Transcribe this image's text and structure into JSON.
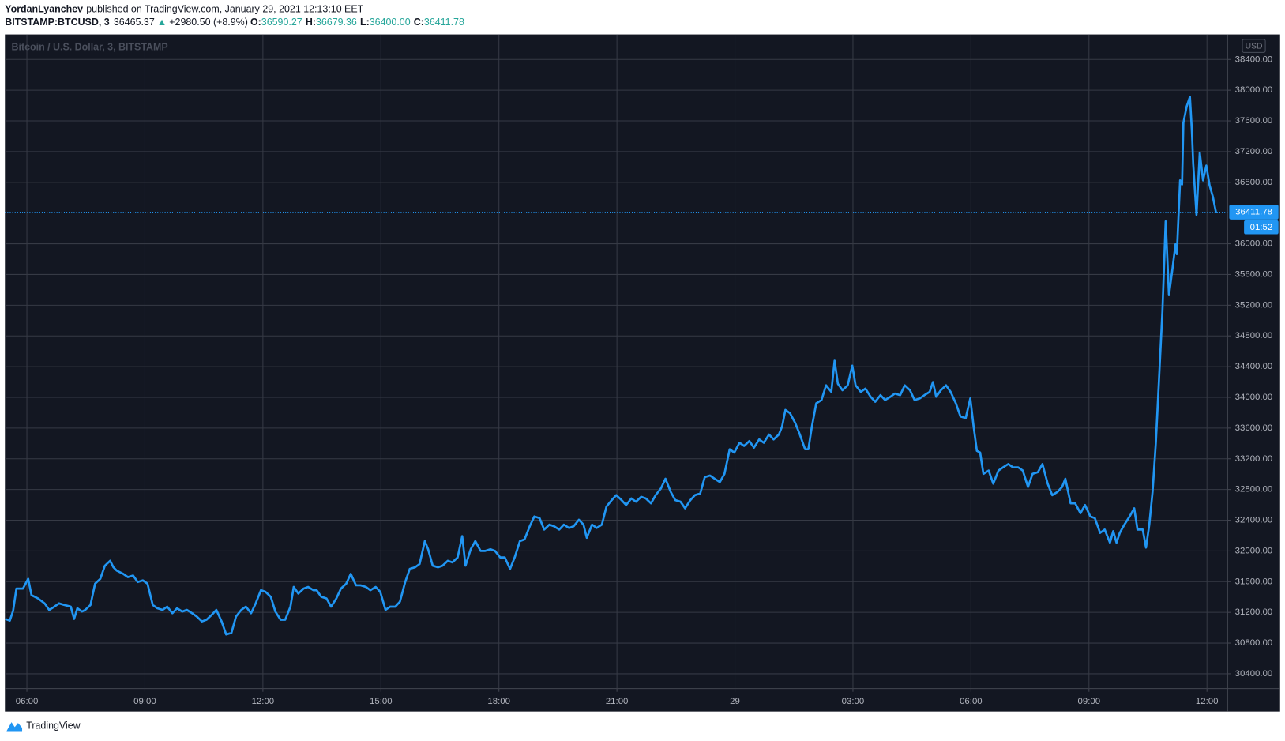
{
  "header": {
    "author": "YordanLyanchev",
    "published": "published on TradingView.com, January 29, 2021 12:13:10 EET",
    "symbol": "BITSTAMP:BTCUSD, 3",
    "price": "36465.37",
    "arrow": "▲",
    "change": "+2980.50 (+8.9%)",
    "open_label": "O:",
    "open": "36590.27",
    "high_label": "H:",
    "high": "36679.36",
    "low_label": "L:",
    "low": "36400.00",
    "close_label": "C:",
    "close": "36411.78"
  },
  "footer": {
    "brand": "TradingView"
  },
  "chart_data": {
    "type": "line",
    "currency": "USD",
    "countdown": "01:52",
    "last_price": 36411.78,
    "grid": true,
    "xlim": [
      326.5,
      2191.5
    ],
    "ylim": [
      30208,
      38726
    ],
    "xticks": [
      {
        "value": 360,
        "label": "06:00"
      },
      {
        "value": 540,
        "label": "09:00"
      },
      {
        "value": 720,
        "label": "12:00"
      },
      {
        "value": 900,
        "label": "15:00"
      },
      {
        "value": 1080,
        "label": "18:00"
      },
      {
        "value": 1260,
        "label": "21:00"
      },
      {
        "value": 1440,
        "label": "29"
      },
      {
        "value": 1620,
        "label": "03:00"
      },
      {
        "value": 1800,
        "label": "06:00"
      },
      {
        "value": 1980,
        "label": "09:00"
      },
      {
        "value": 2160,
        "label": "12:00"
      }
    ],
    "yticks": [
      {
        "value": 30400,
        "label": "30400.00"
      },
      {
        "value": 30800,
        "label": "30800.00"
      },
      {
        "value": 31200,
        "label": "31200.00"
      },
      {
        "value": 31600,
        "label": "31600.00"
      },
      {
        "value": 32000,
        "label": "32000.00"
      },
      {
        "value": 32400,
        "label": "32400.00"
      },
      {
        "value": 32800,
        "label": "32800.00"
      },
      {
        "value": 33200,
        "label": "33200.00"
      },
      {
        "value": 33600,
        "label": "33600.00"
      },
      {
        "value": 34000,
        "label": "34000.00"
      },
      {
        "value": 34400,
        "label": "34400.00"
      },
      {
        "value": 34800,
        "label": "34800.00"
      },
      {
        "value": 35200,
        "label": "35200.00"
      },
      {
        "value": 35600,
        "label": "35600.00"
      },
      {
        "value": 36000,
        "label": "36000.00"
      },
      {
        "value": 36800,
        "label": "36800.00"
      },
      {
        "value": 37200,
        "label": "37200.00"
      },
      {
        "value": 37600,
        "label": "37600.00"
      },
      {
        "value": 38000,
        "label": "38000.00"
      },
      {
        "value": 38400,
        "label": "38400.00"
      }
    ],
    "x": [
      327,
      334,
      339,
      344,
      354,
      362,
      367,
      377,
      387,
      394,
      402,
      409,
      417,
      427,
      432,
      437,
      444,
      449,
      457,
      464,
      472,
      479,
      487,
      492,
      497,
      507,
      514,
      522,
      529,
      537,
      544,
      552,
      559,
      567,
      574,
      582,
      589,
      597,
      604,
      612,
      619,
      627,
      634,
      642,
      649,
      657,
      664,
      672,
      679,
      687,
      694,
      702,
      709,
      717,
      724,
      732,
      739,
      747,
      754,
      762,
      767,
      774,
      782,
      789,
      797,
      802,
      809,
      817,
      824,
      832,
      839,
      847,
      854,
      862,
      869,
      877,
      884,
      892,
      899,
      907,
      914,
      922,
      929,
      937,
      944,
      952,
      959,
      967,
      972,
      979,
      987,
      994,
      1002,
      1009,
      1017,
      1024,
      1029,
      1037,
      1044,
      1052,
      1059,
      1067,
      1074,
      1082,
      1089,
      1097,
      1104,
      1112,
      1119,
      1127,
      1134,
      1142,
      1149,
      1157,
      1164,
      1172,
      1179,
      1187,
      1194,
      1202,
      1209,
      1214,
      1222,
      1229,
      1237,
      1244,
      1252,
      1259,
      1267,
      1274,
      1282,
      1289,
      1297,
      1304,
      1312,
      1319,
      1327,
      1334,
      1342,
      1349,
      1357,
      1364,
      1372,
      1379,
      1387,
      1394,
      1402,
      1409,
      1417,
      1424,
      1432,
      1439,
      1447,
      1454,
      1462,
      1469,
      1477,
      1484,
      1492,
      1499,
      1507,
      1512,
      1517,
      1524,
      1532,
      1539,
      1547,
      1552,
      1557,
      1564,
      1572,
      1579,
      1587,
      1592,
      1597,
      1604,
      1612,
      1619,
      1624,
      1632,
      1639,
      1647,
      1654,
      1662,
      1669,
      1677,
      1684,
      1692,
      1699,
      1707,
      1714,
      1722,
      1729,
      1737,
      1742,
      1747,
      1754,
      1762,
      1769,
      1777,
      1784,
      1792,
      1799,
      1804,
      1809,
      1814,
      1819,
      1827,
      1834,
      1842,
      1849,
      1857,
      1864,
      1872,
      1879,
      1887,
      1894,
      1902,
      1909,
      1917,
      1924,
      1932,
      1939,
      1944,
      1952,
      1959,
      1967,
      1974,
      1982,
      1989,
      1997,
      2004,
      2012,
      2017,
      2022,
      2027,
      2034,
      2042,
      2049,
      2054,
      2062,
      2067,
      2072,
      2077,
      2082,
      2087,
      2092,
      2097,
      2102,
      2107,
      2112,
      2114,
      2119,
      2122,
      2124,
      2129,
      2134,
      2137,
      2139,
      2144,
      2149,
      2154,
      2159,
      2164,
      2169,
      2174
    ],
    "series": [
      {
        "name": "Bitcoin / U.S. Dollar, 3, BITSTAMP",
        "color": "#2196f3",
        "values": [
          31114,
          31093,
          31221,
          31509,
          31509,
          31637,
          31424,
          31381,
          31317,
          31232,
          31274,
          31317,
          31296,
          31274,
          31114,
          31253,
          31210,
          31232,
          31296,
          31573,
          31637,
          31808,
          31872,
          31787,
          31744,
          31701,
          31659,
          31680,
          31595,
          31616,
          31573,
          31296,
          31253,
          31232,
          31274,
          31189,
          31253,
          31210,
          31232,
          31189,
          31146,
          31082,
          31104,
          31168,
          31232,
          31082,
          30912,
          30933,
          31146,
          31232,
          31274,
          31189,
          31317,
          31488,
          31467,
          31403,
          31210,
          31104,
          31104,
          31274,
          31531,
          31445,
          31509,
          31531,
          31488,
          31488,
          31403,
          31381,
          31274,
          31381,
          31509,
          31573,
          31701,
          31552,
          31552,
          31531,
          31488,
          31531,
          31467,
          31232,
          31274,
          31274,
          31339,
          31595,
          31766,
          31787,
          31830,
          32128,
          32022,
          31808,
          31787,
          31808,
          31872,
          31851,
          31915,
          32193,
          31808,
          32022,
          32128,
          32000,
          32000,
          32022,
          32000,
          31915,
          31915,
          31766,
          31915,
          32128,
          32150,
          32321,
          32449,
          32427,
          32278,
          32342,
          32321,
          32278,
          32342,
          32299,
          32321,
          32406,
          32342,
          32171,
          32342,
          32299,
          32342,
          32577,
          32662,
          32726,
          32662,
          32598,
          32684,
          32641,
          32705,
          32684,
          32620,
          32726,
          32812,
          32940,
          32769,
          32662,
          32641,
          32555,
          32662,
          32726,
          32748,
          32961,
          32982,
          32940,
          32897,
          33004,
          33324,
          33281,
          33409,
          33367,
          33431,
          33345,
          33452,
          33409,
          33516,
          33452,
          33516,
          33623,
          33836,
          33794,
          33666,
          33516,
          33324,
          33324,
          33602,
          33922,
          33965,
          34157,
          34071,
          34477,
          34178,
          34093,
          34157,
          34413,
          34157,
          34071,
          34114,
          34007,
          33943,
          34029,
          33965,
          34007,
          34050,
          34029,
          34157,
          34093,
          33965,
          33986,
          34029,
          34071,
          34199,
          34007,
          34093,
          34157,
          34071,
          33922,
          33751,
          33730,
          33986,
          33623,
          33303,
          33281,
          33004,
          33047,
          32876,
          33047,
          33089,
          33132,
          33089,
          33089,
          33047,
          32833,
          33004,
          33025,
          33132,
          32876,
          32726,
          32769,
          32833,
          32940,
          32620,
          32620,
          32491,
          32598,
          32449,
          32427,
          32235,
          32278,
          32107,
          32257,
          32107,
          32235,
          32342,
          32449,
          32555,
          32278,
          32278,
          32043,
          32342,
          32769,
          33409,
          34263,
          35117,
          36292,
          35331,
          35651,
          35993,
          35865,
          36825,
          36772,
          37573,
          37786,
          37914,
          37466,
          37039,
          36377,
          37188,
          36825,
          37018,
          36761,
          36612,
          36398
        ]
      }
    ]
  }
}
